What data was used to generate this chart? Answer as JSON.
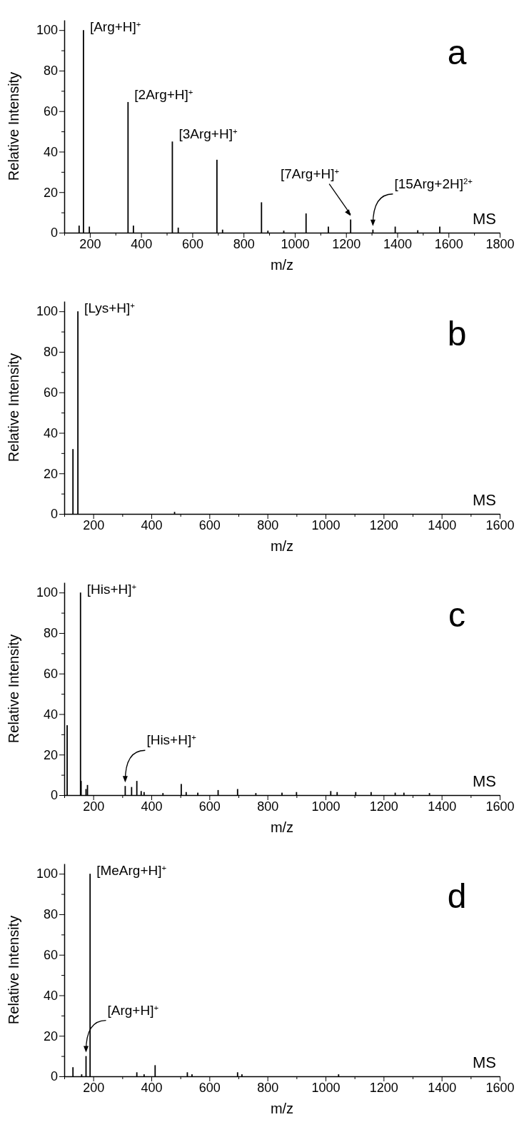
{
  "chart_data": [
    {
      "type": "bar",
      "xlabel": "m/z",
      "ylabel": "Relative Intensity",
      "color": "#000000",
      "xlim": [
        100,
        1800
      ],
      "ylim": [
        0,
        105
      ],
      "xticks": [
        {
          "value": 100,
          "label": null
        },
        200,
        {
          "value": 300,
          "label": null
        },
        400,
        {
          "value": 500,
          "label": null
        },
        600,
        {
          "value": 700,
          "label": null
        },
        800,
        {
          "value": 900,
          "label": null
        },
        1000,
        {
          "value": 1100,
          "label": null
        },
        1200,
        {
          "value": 1300,
          "label": null
        },
        1400,
        {
          "value": 1500,
          "label": null
        },
        1600,
        {
          "value": 1700,
          "label": null
        },
        1800
      ],
      "yticks": [
        0,
        {
          "value": 10,
          "label": null
        },
        20,
        {
          "value": 30,
          "label": null
        },
        40,
        {
          "value": 50,
          "label": null
        },
        60,
        {
          "value": 70,
          "label": null
        },
        80,
        {
          "value": 90,
          "label": null
        },
        100
      ],
      "x": [
        158,
        175,
        198,
        349,
        370,
        522,
        545,
        696,
        718,
        870,
        895,
        957,
        1044,
        1131,
        1218,
        1305,
        1392,
        1480,
        1566
      ],
      "values": [
        3.5,
        100,
        3,
        64.5,
        3.5,
        45,
        2.5,
        36,
        1.5,
        15,
        1,
        1,
        9.5,
        3,
        6.5,
        1.5,
        3,
        1.2,
        3
      ],
      "annotations": [
        {
          "text": "[Arg+H]$^{+}$",
          "x": 175,
          "y": 100
        },
        {
          "text": "[2Arg+H]$^{+}$",
          "x": 349,
          "y": 64.5
        },
        {
          "text": "[3Arg+H]$^{+}$",
          "x": 522,
          "y": 45
        },
        {
          "text": "[7Arg+H]$^{+}$",
          "x": 1218,
          "y": 6.5
        },
        {
          "text": "[15Arg+2H]$^{2+}$",
          "x": 1305,
          "y": 1.5
        },
        "a",
        "MS"
      ]
    },
    {
      "type": "bar",
      "xlabel": "m/z",
      "ylabel": "Relative Intensity",
      "color": "#000000",
      "xlim": [
        100,
        1600
      ],
      "ylim": [
        0,
        105
      ],
      "xticks": [
        {
          "value": 100,
          "label": null
        },
        200,
        {
          "value": 300,
          "label": null
        },
        400,
        {
          "value": 500,
          "label": null
        },
        600,
        {
          "value": 700,
          "label": null
        },
        800,
        {
          "value": 900,
          "label": null
        },
        1000,
        {
          "value": 1100,
          "label": null
        },
        1200,
        {
          "value": 1300,
          "label": null
        },
        1400,
        {
          "value": 1500,
          "label": null
        },
        1600
      ],
      "yticks": [
        0,
        {
          "value": 10,
          "label": null
        },
        20,
        {
          "value": 30,
          "label": null
        },
        40,
        {
          "value": 50,
          "label": null
        },
        60,
        {
          "value": 70,
          "label": null
        },
        80,
        {
          "value": 90,
          "label": null
        },
        100
      ],
      "x": [
        130,
        147,
        480
      ],
      "values": [
        32,
        100,
        1
      ],
      "annotations": [
        {
          "text": "[Lys+H]$^{+}$",
          "x": 147,
          "y": 100
        },
        "b",
        "MS"
      ]
    },
    {
      "type": "bar",
      "xlabel": "m/z",
      "ylabel": "Relative Intensity",
      "color": "#000000",
      "xlim": [
        100,
        1600
      ],
      "ylim": [
        0,
        105
      ],
      "xticks": [
        {
          "value": 100,
          "label": null
        },
        200,
        {
          "value": 300,
          "label": null
        },
        400,
        {
          "value": 500,
          "label": null
        },
        600,
        {
          "value": 700,
          "label": null
        },
        800,
        {
          "value": 900,
          "label": null
        },
        1000,
        {
          "value": 1100,
          "label": null
        },
        1200,
        {
          "value": 1300,
          "label": null
        },
        1400,
        {
          "value": 1500,
          "label": null
        },
        1600
      ],
      "yticks": [
        0,
        {
          "value": 10,
          "label": null
        },
        20,
        {
          "value": 30,
          "label": null
        },
        40,
        {
          "value": 50,
          "label": null
        },
        60,
        {
          "value": 70,
          "label": null
        },
        80,
        {
          "value": 90,
          "label": null
        },
        100
      ],
      "x": [
        110,
        156,
        158,
        175,
        180,
        310,
        332,
        350,
        365,
        375,
        440,
        503,
        520,
        560,
        630,
        697,
        760,
        850,
        900,
        1018,
        1040,
        1104,
        1157,
        1240,
        1270,
        1358
      ],
      "values": [
        34.5,
        100,
        7,
        3,
        5,
        4.5,
        4,
        7,
        2,
        1.5,
        1,
        5.5,
        1.5,
        1.2,
        2.5,
        3,
        1,
        1.2,
        1.5,
        2,
        1.5,
        1.5,
        1.5,
        1.2,
        1.2,
        1
      ],
      "annotations": [
        {
          "text": "[His+H]$^{+}$",
          "x": 156,
          "y": 100
        },
        {
          "text": "[His+H]$^{+}$",
          "x": 310,
          "y": 4.5
        },
        "c",
        "MS"
      ]
    },
    {
      "type": "bar",
      "xlabel": "m/z",
      "ylabel": "Relative Intensity",
      "color": "#000000",
      "xlim": [
        100,
        1600
      ],
      "ylim": [
        0,
        105
      ],
      "xticks": [
        {
          "value": 100,
          "label": null
        },
        200,
        {
          "value": 300,
          "label": null
        },
        400,
        {
          "value": 500,
          "label": null
        },
        600,
        {
          "value": 700,
          "label": null
        },
        800,
        {
          "value": 900,
          "label": null
        },
        1000,
        {
          "value": 1100,
          "label": null
        },
        1200,
        {
          "value": 1300,
          "label": null
        },
        1400,
        {
          "value": 1500,
          "label": null
        },
        1600
      ],
      "yticks": [
        0,
        {
          "value": 10,
          "label": null
        },
        20,
        {
          "value": 30,
          "label": null
        },
        40,
        {
          "value": 50,
          "label": null
        },
        60,
        {
          "value": 70,
          "label": null
        },
        80,
        {
          "value": 90,
          "label": null
        },
        100
      ],
      "x": [
        130,
        160,
        175,
        189,
        350,
        375,
        413,
        524,
        540,
        697,
        712,
        1045
      ],
      "values": [
        4.5,
        1,
        10,
        100,
        2,
        1,
        5.5,
        2,
        1,
        2,
        1,
        1
      ],
      "annotations": [
        {
          "text": "[MeArg+H]$^{+}$",
          "x": 189,
          "y": 100
        },
        {
          "text": "[Arg+H]$^{+}$",
          "x": 175,
          "y": 10
        },
        "d",
        "MS"
      ]
    }
  ]
}
